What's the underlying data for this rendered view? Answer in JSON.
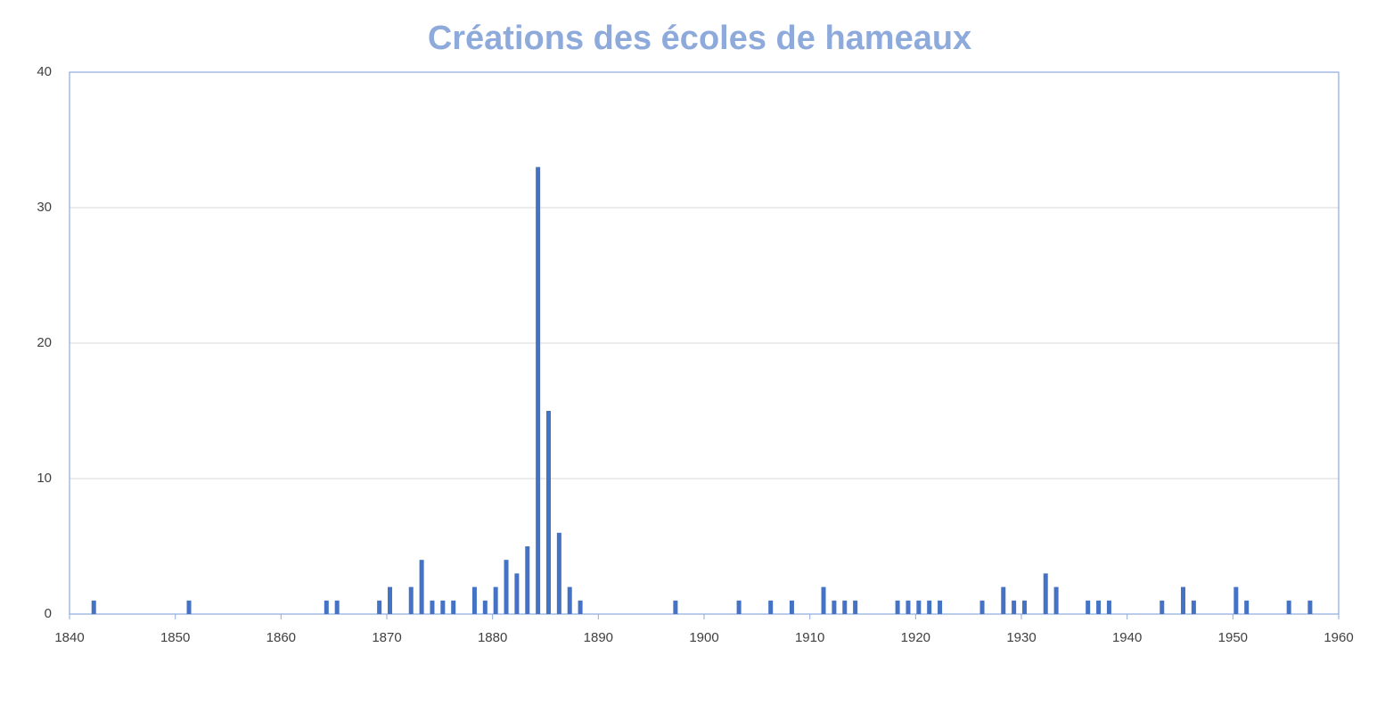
{
  "chart_data": {
    "type": "bar",
    "title": "Créations des écoles de hameaux",
    "x": [
      1842,
      1851,
      1864,
      1865,
      1869,
      1870,
      1872,
      1873,
      1874,
      1875,
      1876,
      1878,
      1879,
      1880,
      1881,
      1882,
      1883,
      1884,
      1885,
      1886,
      1887,
      1888,
      1897,
      1903,
      1906,
      1908,
      1911,
      1912,
      1913,
      1914,
      1918,
      1919,
      1920,
      1921,
      1922,
      1926,
      1928,
      1929,
      1930,
      1932,
      1933,
      1936,
      1937,
      1938,
      1943,
      1945,
      1946,
      1950,
      1951,
      1955,
      1957
    ],
    "values": [
      1,
      1,
      1,
      1,
      1,
      2,
      2,
      4,
      1,
      1,
      1,
      2,
      1,
      2,
      4,
      3,
      5,
      33,
      15,
      6,
      2,
      1,
      1,
      1,
      1,
      1,
      2,
      1,
      1,
      1,
      1,
      1,
      1,
      1,
      1,
      1,
      2,
      1,
      1,
      3,
      2,
      1,
      1,
      1,
      1,
      2,
      1,
      2,
      1,
      1,
      1
    ],
    "color": "#4472c4",
    "xlim": [
      1840,
      1960
    ],
    "xticks": [
      1840,
      1850,
      1860,
      1870,
      1880,
      1890,
      1900,
      1910,
      1920,
      1930,
      1940,
      1950,
      1960
    ],
    "ylim": [
      0,
      40
    ],
    "yticks": [
      0,
      10,
      20,
      30,
      40
    ],
    "grid": true
  }
}
